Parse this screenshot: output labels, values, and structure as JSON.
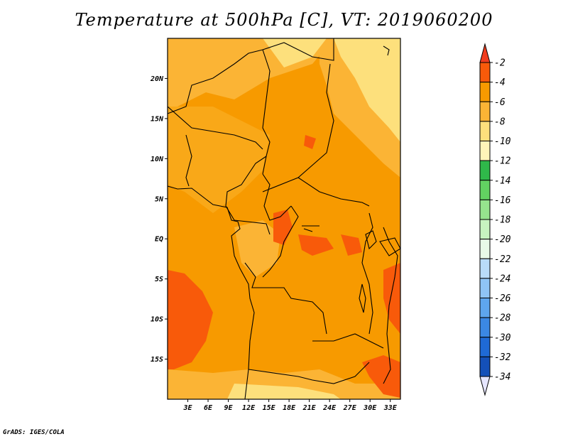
{
  "title": "Temperature at 500hPa [C], VT: 2019060200",
  "credit": "GrADS: IGES/COLA",
  "map": {
    "lon_range": [
      0,
      34.5
    ],
    "lat_range": [
      -20,
      25
    ],
    "lat_ticks": [
      {
        "value": 20,
        "label": "20N"
      },
      {
        "value": 15,
        "label": "15N"
      },
      {
        "value": 10,
        "label": "10N"
      },
      {
        "value": 5,
        "label": "5N"
      },
      {
        "value": 0,
        "label": "EQ"
      },
      {
        "value": -5,
        "label": "5S"
      },
      {
        "value": -10,
        "label": "10S"
      },
      {
        "value": -15,
        "label": "15S"
      }
    ],
    "lon_ticks": [
      {
        "value": 3,
        "label": "3E"
      },
      {
        "value": 6,
        "label": "6E"
      },
      {
        "value": 9,
        "label": "9E"
      },
      {
        "value": 12,
        "label": "12E"
      },
      {
        "value": 15,
        "label": "15E"
      },
      {
        "value": 18,
        "label": "18E"
      },
      {
        "value": 21,
        "label": "21E"
      },
      {
        "value": 24,
        "label": "24E"
      },
      {
        "value": 27,
        "label": "27E"
      },
      {
        "value": 30,
        "label": "30E"
      },
      {
        "value": 33,
        "label": "33E"
      }
    ]
  },
  "colorbar": {
    "labels": [
      "-2",
      "-4",
      "-6",
      "-8",
      "-10",
      "-12",
      "-14",
      "-16",
      "-18",
      "-20",
      "-22",
      "-24",
      "-26",
      "-28",
      "-30",
      "-32",
      "-34"
    ],
    "top_arrow_color": "#f03c1e",
    "bottom_arrow_color": "#e6e6ff",
    "colors": [
      "#f85a0a",
      "#f79a00",
      "#fbb435",
      "#fde07c",
      "#fff5b9",
      "#2fb84a",
      "#62d261",
      "#96e48e",
      "#c7f4c0",
      "#e8fae8",
      "#b9dcf9",
      "#8fc4f5",
      "#5ea6ee",
      "#3b88e4",
      "#1f6ad6",
      "#1450b8",
      "#0b2f8a",
      "#08166a"
    ]
  }
}
